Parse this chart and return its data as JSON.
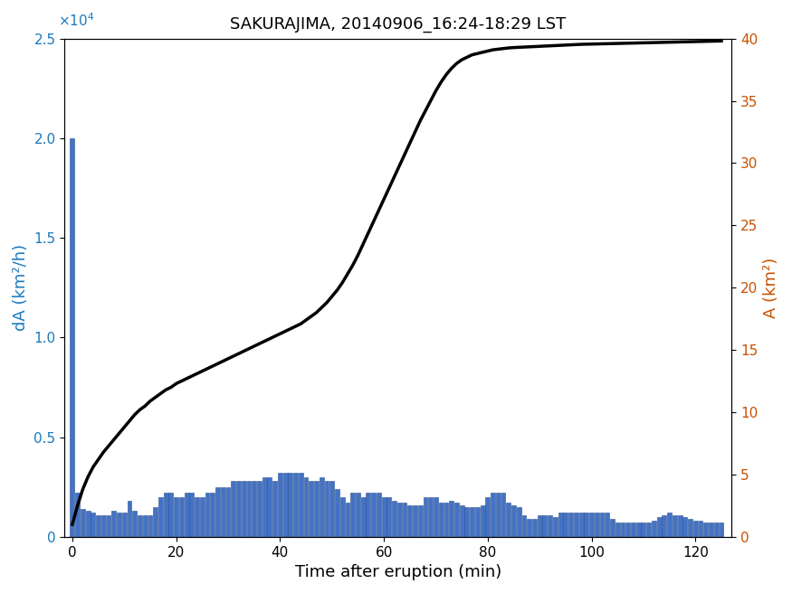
{
  "title": "SAKURAJIMA, 20140906_16:24-18:29 LST",
  "xlabel": "Time after eruption (min)",
  "ylabel_left": "dA (km²/h)",
  "ylabel_right": "A (km²)",
  "left_color": "#1a7abf",
  "right_color": "#c85000",
  "bar_color": "#4472c4",
  "bar_edge_color": "#2a5090",
  "line_color": "#000000",
  "xlim": [
    -1.5,
    127
  ],
  "ylim_left": [
    0,
    25000
  ],
  "ylim_right": [
    0,
    40
  ],
  "xticks": [
    0,
    20,
    40,
    60,
    80,
    100,
    120
  ],
  "yticks_left": [
    0,
    5000,
    10000,
    15000,
    20000,
    25000
  ],
  "yticks_right": [
    0,
    5,
    10,
    15,
    20,
    25,
    30,
    35,
    40
  ],
  "bar_times": [
    0,
    1,
    2,
    3,
    4,
    5,
    6,
    7,
    8,
    9,
    10,
    11,
    12,
    13,
    14,
    15,
    16,
    17,
    18,
    19,
    20,
    21,
    22,
    23,
    24,
    25,
    26,
    27,
    28,
    29,
    30,
    31,
    32,
    33,
    34,
    35,
    36,
    37,
    38,
    39,
    40,
    41,
    42,
    43,
    44,
    45,
    46,
    47,
    48,
    49,
    50,
    51,
    52,
    53,
    54,
    55,
    56,
    57,
    58,
    59,
    60,
    61,
    62,
    63,
    64,
    65,
    66,
    67,
    68,
    69,
    70,
    71,
    72,
    73,
    74,
    75,
    76,
    77,
    78,
    79,
    80,
    81,
    82,
    83,
    84,
    85,
    86,
    87,
    88,
    89,
    90,
    91,
    92,
    93,
    94,
    95,
    96,
    97,
    98,
    99,
    100,
    101,
    102,
    103,
    104,
    105,
    106,
    107,
    108,
    109,
    110,
    111,
    112,
    113,
    114,
    115,
    116,
    117,
    118,
    119,
    120,
    121,
    122,
    123,
    124,
    125
  ],
  "bar_values": [
    20000,
    2200,
    1400,
    1300,
    1200,
    1100,
    1100,
    1100,
    1300,
    1200,
    1200,
    1800,
    1300,
    1100,
    1100,
    1100,
    1500,
    2000,
    2200,
    2200,
    2000,
    2000,
    2200,
    2200,
    2000,
    2000,
    2200,
    2200,
    2500,
    2500,
    2500,
    2800,
    2800,
    2800,
    2800,
    2800,
    2800,
    3000,
    3000,
    2800,
    3200,
    3200,
    3200,
    3200,
    3200,
    3000,
    2800,
    2800,
    3000,
    2800,
    2800,
    2400,
    2000,
    1700,
    2200,
    2200,
    2000,
    2200,
    2200,
    2200,
    2000,
    2000,
    1800,
    1700,
    1700,
    1600,
    1600,
    1600,
    2000,
    2000,
    2000,
    1700,
    1700,
    1800,
    1700,
    1600,
    1500,
    1500,
    1500,
    1600,
    2000,
    2200,
    2200,
    2200,
    1700,
    1600,
    1500,
    1100,
    900,
    900,
    1100,
    1100,
    1100,
    1000,
    1200,
    1200,
    1200,
    1200,
    1200,
    1200,
    1200,
    1200,
    1200,
    1200,
    900,
    700,
    700,
    700,
    700,
    700,
    700,
    700,
    800,
    1000,
    1100,
    1200,
    1100,
    1100,
    1000,
    900,
    800,
    800,
    700,
    700,
    700,
    700
  ],
  "line_times": [
    0,
    1,
    2,
    3,
    4,
    5,
    6,
    7,
    8,
    9,
    10,
    11,
    12,
    13,
    14,
    15,
    16,
    17,
    18,
    19,
    20,
    21,
    22,
    23,
    24,
    25,
    26,
    27,
    28,
    29,
    30,
    31,
    32,
    33,
    34,
    35,
    36,
    37,
    38,
    39,
    40,
    41,
    42,
    43,
    44,
    45,
    46,
    47,
    48,
    49,
    50,
    51,
    52,
    53,
    54,
    55,
    56,
    57,
    58,
    59,
    60,
    61,
    62,
    63,
    64,
    65,
    66,
    67,
    68,
    69,
    70,
    71,
    72,
    73,
    74,
    75,
    76,
    77,
    78,
    79,
    80,
    81,
    82,
    83,
    84,
    85,
    86,
    87,
    88,
    89,
    90,
    91,
    92,
    93,
    94,
    95,
    96,
    97,
    98,
    99,
    100,
    101,
    102,
    103,
    104,
    105,
    106,
    107,
    108,
    109,
    110,
    111,
    112,
    113,
    114,
    115,
    116,
    117,
    118,
    119,
    120,
    121,
    122,
    123,
    124,
    125
  ],
  "line_values": [
    1.0,
    2.5,
    3.8,
    4.8,
    5.6,
    6.2,
    6.8,
    7.3,
    7.8,
    8.3,
    8.8,
    9.3,
    9.8,
    10.2,
    10.5,
    10.9,
    11.2,
    11.5,
    11.8,
    12.0,
    12.3,
    12.5,
    12.7,
    12.9,
    13.1,
    13.3,
    13.5,
    13.7,
    13.9,
    14.1,
    14.3,
    14.5,
    14.7,
    14.9,
    15.1,
    15.3,
    15.5,
    15.7,
    15.9,
    16.1,
    16.3,
    16.5,
    16.7,
    16.9,
    17.1,
    17.4,
    17.7,
    18.0,
    18.4,
    18.8,
    19.3,
    19.8,
    20.4,
    21.1,
    21.8,
    22.6,
    23.5,
    24.4,
    25.3,
    26.2,
    27.1,
    28.0,
    28.9,
    29.8,
    30.7,
    31.6,
    32.5,
    33.4,
    34.2,
    35.0,
    35.8,
    36.5,
    37.1,
    37.6,
    38.0,
    38.3,
    38.5,
    38.7,
    38.8,
    38.9,
    39.0,
    39.1,
    39.15,
    39.2,
    39.25,
    39.28,
    39.3,
    39.32,
    39.34,
    39.36,
    39.38,
    39.4,
    39.42,
    39.44,
    39.46,
    39.48,
    39.5,
    39.52,
    39.54,
    39.55,
    39.56,
    39.57,
    39.58,
    39.59,
    39.6,
    39.61,
    39.62,
    39.63,
    39.64,
    39.65,
    39.66,
    39.67,
    39.68,
    39.69,
    39.7,
    39.71,
    39.72,
    39.73,
    39.74,
    39.75,
    39.76,
    39.77,
    39.78,
    39.79,
    39.8,
    39.81
  ]
}
